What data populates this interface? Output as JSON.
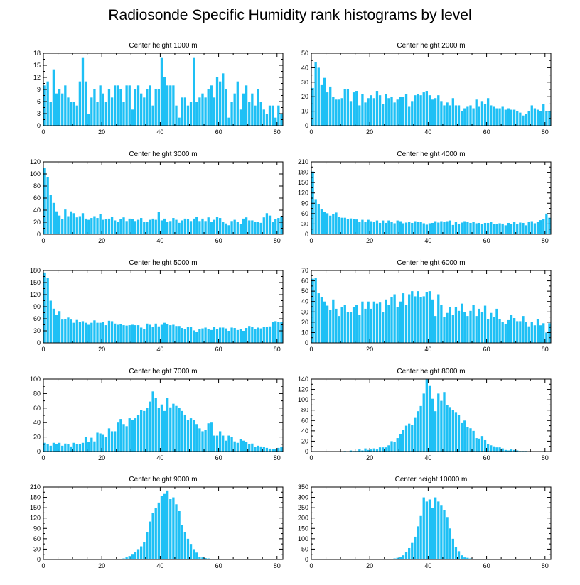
{
  "figure_title": "Radiosonde Specific Humidity rank histograms by level",
  "bar_color": "#1ec0f5",
  "chart_data": [
    {
      "type": "bar",
      "title": "Center height 1000 m",
      "xlim": [
        0,
        82
      ],
      "ylim": [
        0,
        18
      ],
      "xticks": [
        0,
        20,
        40,
        60,
        80
      ],
      "yticks": [
        0,
        3,
        6,
        9,
        12,
        15,
        18
      ],
      "values": [
        10,
        11,
        6,
        14,
        8,
        9,
        8,
        10,
        7,
        6,
        6,
        5,
        11,
        17,
        11,
        3,
        7,
        9,
        6,
        10,
        8,
        6,
        9,
        7,
        10,
        10,
        9,
        6,
        10,
        10,
        4,
        9,
        10,
        8,
        7,
        9,
        10,
        5,
        9,
        9,
        17,
        12,
        10,
        10,
        10,
        5,
        2,
        7,
        7,
        5,
        6,
        17,
        6,
        7,
        8,
        7,
        9,
        10,
        7,
        12,
        11,
        13,
        9,
        2,
        6,
        8,
        11,
        4,
        8,
        10,
        6,
        8,
        5,
        9,
        6,
        4,
        3,
        5,
        5,
        2,
        5,
        3
      ]
    },
    {
      "type": "bar",
      "title": "Center height 2000 m",
      "xlim": [
        0,
        82
      ],
      "ylim": [
        0,
        50
      ],
      "xticks": [
        0,
        20,
        40,
        60,
        80
      ],
      "yticks": [
        0,
        10,
        20,
        30,
        40,
        50
      ],
      "values": [
        26,
        44,
        40,
        28,
        33,
        23,
        27,
        20,
        18,
        18,
        19,
        25,
        25,
        17,
        23,
        24,
        14,
        22,
        16,
        19,
        21,
        19,
        24,
        21,
        15,
        22,
        19,
        20,
        16,
        18,
        20,
        20,
        22,
        13,
        17,
        21,
        22,
        21,
        23,
        24,
        21,
        18,
        19,
        21,
        17,
        14,
        16,
        14,
        19,
        14,
        14,
        10,
        12,
        13,
        14,
        12,
        18,
        13,
        17,
        15,
        19,
        14,
        13,
        12,
        12,
        13,
        11,
        12,
        11,
        11,
        10,
        9,
        7,
        8,
        10,
        14,
        12,
        11,
        10,
        15,
        10,
        10
      ]
    },
    {
      "type": "bar",
      "title": "Center height 3000 m",
      "xlim": [
        0,
        82
      ],
      "ylim": [
        0,
        120
      ],
      "xticks": [
        0,
        20,
        40,
        60,
        80
      ],
      "yticks": [
        0,
        20,
        40,
        60,
        80,
        100,
        120
      ],
      "values": [
        110,
        95,
        65,
        52,
        38,
        31,
        25,
        41,
        30,
        38,
        35,
        28,
        30,
        35,
        26,
        24,
        27,
        30,
        27,
        33,
        24,
        25,
        26,
        29,
        23,
        21,
        25,
        28,
        22,
        26,
        25,
        22,
        24,
        27,
        21,
        21,
        24,
        26,
        24,
        37,
        23,
        26,
        20,
        22,
        27,
        24,
        19,
        23,
        26,
        25,
        22,
        26,
        29,
        22,
        26,
        22,
        28,
        21,
        24,
        29,
        27,
        21,
        18,
        15,
        22,
        24,
        21,
        17,
        26,
        28,
        23,
        23,
        20,
        20,
        19,
        28,
        35,
        31,
        21,
        25,
        27,
        30
      ]
    },
    {
      "type": "bar",
      "title": "Center height 4000 m",
      "xlim": [
        0,
        82
      ],
      "ylim": [
        0,
        210
      ],
      "xticks": [
        0,
        20,
        40,
        60,
        80
      ],
      "yticks": [
        0,
        30,
        60,
        90,
        120,
        150,
        180,
        210
      ],
      "values": [
        182,
        100,
        88,
        72,
        65,
        61,
        54,
        58,
        63,
        50,
        48,
        48,
        44,
        46,
        45,
        43,
        35,
        42,
        37,
        42,
        38,
        36,
        40,
        33,
        40,
        33,
        40,
        35,
        32,
        40,
        38,
        32,
        34,
        36,
        33,
        38,
        36,
        35,
        32,
        28,
        32,
        33,
        38,
        34,
        38,
        37,
        38,
        40,
        27,
        36,
        29,
        34,
        38,
        35,
        33,
        36,
        32,
        33,
        30,
        33,
        33,
        35,
        30,
        30,
        32,
        31,
        26,
        33,
        30,
        35,
        30,
        34,
        33,
        26,
        35,
        38,
        32,
        35,
        41,
        44,
        60,
        48
      ]
    },
    {
      "type": "bar",
      "title": "Center height 5000 m",
      "xlim": [
        0,
        82
      ],
      "ylim": [
        0,
        180
      ],
      "xticks": [
        0,
        20,
        40,
        60,
        80
      ],
      "yticks": [
        0,
        30,
        60,
        90,
        120,
        150,
        180
      ],
      "values": [
        175,
        162,
        105,
        85,
        70,
        79,
        58,
        60,
        63,
        58,
        50,
        57,
        52,
        54,
        50,
        45,
        50,
        56,
        50,
        50,
        52,
        44,
        55,
        54,
        48,
        45,
        46,
        44,
        43,
        44,
        45,
        44,
        44,
        38,
        35,
        48,
        45,
        40,
        48,
        41,
        45,
        50,
        46,
        44,
        45,
        42,
        42,
        37,
        34,
        40,
        40,
        31,
        27,
        34,
        36,
        38,
        35,
        32,
        39,
        35,
        38,
        38,
        36,
        30,
        38,
        37,
        32,
        35,
        30,
        37,
        42,
        39,
        35,
        38,
        36,
        40,
        40,
        41,
        52,
        54,
        52,
        52
      ]
    },
    {
      "type": "bar",
      "title": "Center height 6000 m",
      "xlim": [
        0,
        82
      ],
      "ylim": [
        0,
        70
      ],
      "xticks": [
        0,
        20,
        40,
        60,
        80
      ],
      "yticks": [
        0,
        10,
        20,
        30,
        40,
        50,
        60,
        70
      ],
      "values": [
        62,
        63,
        48,
        44,
        40,
        36,
        32,
        42,
        33,
        26,
        35,
        37,
        30,
        30,
        35,
        37,
        27,
        40,
        33,
        40,
        33,
        40,
        38,
        39,
        30,
        42,
        37,
        44,
        47,
        35,
        40,
        48,
        37,
        47,
        50,
        45,
        50,
        44,
        45,
        49,
        50,
        42,
        26,
        47,
        37,
        25,
        29,
        35,
        27,
        35,
        31,
        38,
        30,
        26,
        31,
        37,
        26,
        33,
        30,
        36,
        23,
        29,
        25,
        33,
        23,
        20,
        18,
        22,
        27,
        24,
        21,
        21,
        26,
        20,
        16,
        20,
        17,
        23,
        17,
        19,
        10,
        19
      ]
    },
    {
      "type": "bar",
      "title": "Center height 7000 m",
      "xlim": [
        0,
        82
      ],
      "ylim": [
        0,
        100
      ],
      "xticks": [
        0,
        20,
        40,
        60,
        80
      ],
      "yticks": [
        0,
        20,
        40,
        60,
        80,
        100
      ],
      "values": [
        12,
        10,
        8,
        12,
        10,
        12,
        8,
        11,
        10,
        7,
        12,
        10,
        10,
        12,
        20,
        13,
        19,
        14,
        26,
        25,
        23,
        20,
        32,
        28,
        28,
        40,
        45,
        38,
        35,
        46,
        44,
        46,
        50,
        57,
        56,
        60,
        69,
        83,
        74,
        60,
        65,
        56,
        74,
        61,
        66,
        63,
        60,
        56,
        51,
        44,
        46,
        44,
        38,
        32,
        28,
        30,
        39,
        40,
        22,
        22,
        28,
        22,
        15,
        22,
        20,
        14,
        12,
        17,
        15,
        13,
        10,
        11,
        6,
        8,
        7,
        6,
        5,
        4,
        3,
        3,
        5,
        6
      ]
    },
    {
      "type": "bar",
      "title": "Center height 8000 m",
      "xlim": [
        0,
        82
      ],
      "ylim": [
        0,
        140
      ],
      "xticks": [
        0,
        20,
        40,
        60,
        80
      ],
      "yticks": [
        0,
        20,
        40,
        60,
        80,
        100,
        120,
        140
      ],
      "values": [
        0,
        0,
        0,
        0,
        0,
        0,
        0,
        0,
        0,
        0,
        0,
        1,
        0,
        2,
        1,
        1,
        4,
        2,
        6,
        3,
        4,
        6,
        4,
        8,
        8,
        8,
        12,
        20,
        18,
        26,
        34,
        42,
        50,
        54,
        52,
        65,
        78,
        88,
        112,
        140,
        128,
        102,
        78,
        112,
        98,
        115,
        90,
        86,
        80,
        75,
        70,
        55,
        60,
        48,
        45,
        40,
        26,
        25,
        30,
        22,
        15,
        12,
        10,
        8,
        8,
        6,
        3,
        2,
        4,
        3,
        2,
        1,
        1,
        1,
        0,
        0,
        0,
        0,
        0,
        0,
        0,
        0
      ]
    },
    {
      "type": "bar",
      "title": "Center height 9000 m",
      "xlim": [
        0,
        82
      ],
      "ylim": [
        0,
        210
      ],
      "xticks": [
        0,
        20,
        40,
        60,
        80
      ],
      "yticks": [
        0,
        30,
        60,
        90,
        120,
        150,
        180,
        210
      ],
      "values": [
        0,
        0,
        0,
        0,
        0,
        0,
        0,
        0,
        0,
        0,
        0,
        0,
        0,
        0,
        0,
        0,
        0,
        0,
        0,
        0,
        0,
        0,
        0,
        0,
        1,
        1,
        2,
        3,
        6,
        10,
        14,
        22,
        30,
        38,
        50,
        80,
        110,
        135,
        150,
        165,
        185,
        190,
        200,
        175,
        180,
        160,
        140,
        100,
        80,
        60,
        45,
        30,
        20,
        8,
        6,
        4,
        3,
        2,
        2,
        1,
        1,
        1,
        1,
        0,
        0,
        0,
        0,
        0,
        0,
        0,
        0,
        0,
        0,
        0,
        0,
        0,
        0,
        0,
        0,
        0,
        0,
        0
      ]
    },
    {
      "type": "bar",
      "title": "Center height 10000 m",
      "xlim": [
        0,
        82
      ],
      "ylim": [
        0,
        350
      ],
      "xticks": [
        0,
        20,
        40,
        60,
        80
      ],
      "yticks": [
        0,
        50,
        100,
        150,
        200,
        250,
        300,
        350
      ],
      "values": [
        0,
        0,
        0,
        0,
        0,
        0,
        0,
        0,
        0,
        0,
        0,
        0,
        0,
        0,
        0,
        0,
        0,
        0,
        0,
        0,
        0,
        0,
        0,
        0,
        0,
        1,
        2,
        3,
        5,
        8,
        12,
        20,
        35,
        55,
        80,
        110,
        160,
        210,
        300,
        280,
        290,
        250,
        300,
        280,
        260,
        240,
        205,
        150,
        100,
        60,
        40,
        20,
        10,
        8,
        5,
        3,
        2,
        1,
        1,
        1,
        0,
        0,
        0,
        0,
        0,
        0,
        0,
        0,
        0,
        0,
        0,
        0,
        0,
        0,
        0,
        0,
        0,
        0,
        0,
        0,
        0,
        0
      ]
    }
  ]
}
